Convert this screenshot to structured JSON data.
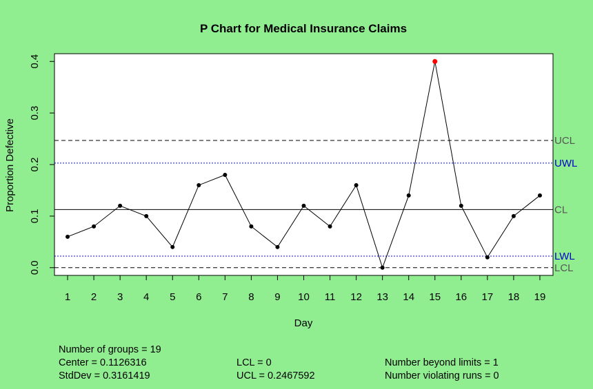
{
  "chart_data": {
    "type": "line",
    "title": "P Chart for Medical Insurance Claims",
    "xlabel": "Day",
    "ylabel": "Proportion Defective",
    "x": [
      1,
      2,
      3,
      4,
      5,
      6,
      7,
      8,
      9,
      10,
      11,
      12,
      13,
      14,
      15,
      16,
      17,
      18,
      19
    ],
    "values": [
      0.06,
      0.08,
      0.12,
      0.1,
      0.04,
      0.16,
      0.18,
      0.08,
      0.04,
      0.12,
      0.08,
      0.16,
      0.0,
      0.14,
      0.4,
      0.12,
      0.02,
      0.1,
      0.14
    ],
    "out_of_control_index": [
      15
    ],
    "xlim": [
      0.5,
      19.5
    ],
    "ylim": [
      -0.015,
      0.415
    ],
    "y_ticks": [
      0.0,
      0.1,
      0.2,
      0.3,
      0.4
    ],
    "y_tick_labels": [
      "0.0",
      "0.1",
      "0.2",
      "0.3",
      "0.4"
    ],
    "limits": {
      "ucl": {
        "value": 0.2467592,
        "label": "UCL",
        "style": "dashed",
        "color": "#000000",
        "label_color": "#555555"
      },
      "uwl": {
        "value": 0.2028,
        "label": "UWL",
        "style": "dotted",
        "color": "#0000ff",
        "label_color": "#0000cd"
      },
      "cl": {
        "value": 0.1126316,
        "label": "CL",
        "style": "solid",
        "color": "#000000",
        "label_color": "#555555"
      },
      "lwl": {
        "value": 0.0224,
        "label": "LWL",
        "style": "dotted",
        "color": "#0000ff",
        "label_color": "#0000cd"
      },
      "lcl": {
        "value": 0.0,
        "label": "LCL",
        "style": "dashed",
        "color": "#000000",
        "label_color": "#555555"
      }
    },
    "colors": {
      "background": "#90ee90",
      "plot_bg": "#ffffff",
      "point": "#000000",
      "violation": "#ff0000"
    }
  },
  "stats": {
    "groups": "Number of groups = 19",
    "center": "Center = 0.1126316",
    "stddev": "StdDev = 0.3161419",
    "lcl": "LCL = 0",
    "ucl": "UCL = 0.2467592",
    "beyond": "Number beyond limits = 1",
    "violating": "Number violating runs = 0"
  }
}
